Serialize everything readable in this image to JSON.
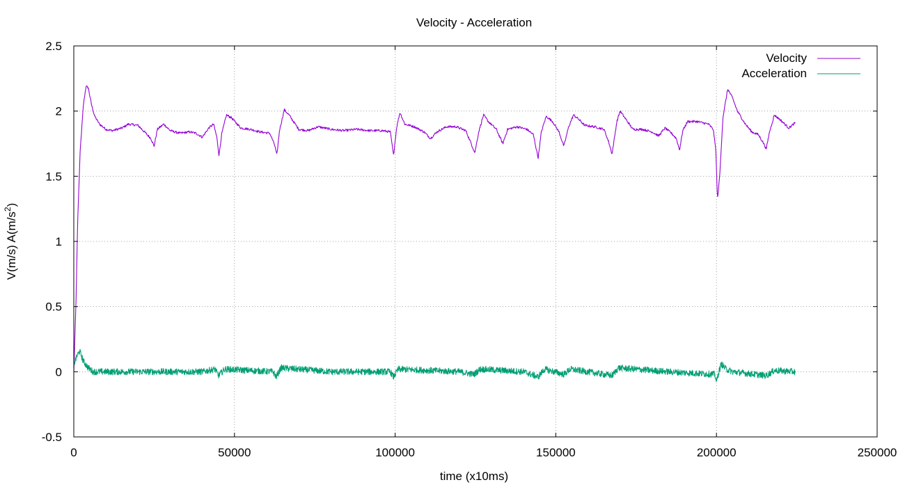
{
  "chart_data": {
    "type": "line",
    "title": "Velocity - Acceleration",
    "xlabel": "time (x10ms)",
    "ylabel": "V(m/s) A(m/s",
    "ylabel_sup": "2",
    "ylabel_close": ")",
    "xlim": [
      0,
      250000
    ],
    "ylim": [
      -0.5,
      2.5
    ],
    "x_ticks": [
      0,
      50000,
      100000,
      150000,
      200000,
      250000
    ],
    "y_ticks": [
      -0.5,
      0,
      0.5,
      1,
      1.5,
      2,
      2.5
    ],
    "grid": true,
    "legend_position": "top-right",
    "series": [
      {
        "name": "Velocity",
        "color": "#9400d3",
        "points": [
          [
            0,
            0.0
          ],
          [
            700,
            0.55
          ],
          [
            1200,
            1.15
          ],
          [
            2000,
            1.7
          ],
          [
            3000,
            2.05
          ],
          [
            3800,
            2.19
          ],
          [
            4500,
            2.18
          ],
          [
            5500,
            2.05
          ],
          [
            6500,
            1.96
          ],
          [
            8000,
            1.9
          ],
          [
            10000,
            1.86
          ],
          [
            12000,
            1.85
          ],
          [
            15000,
            1.87
          ],
          [
            17000,
            1.9
          ],
          [
            20000,
            1.89
          ],
          [
            22000,
            1.84
          ],
          [
            24000,
            1.79
          ],
          [
            25000,
            1.73
          ],
          [
            26000,
            1.86
          ],
          [
            28000,
            1.9
          ],
          [
            30000,
            1.85
          ],
          [
            33000,
            1.83
          ],
          [
            36000,
            1.84
          ],
          [
            38000,
            1.83
          ],
          [
            40000,
            1.8
          ],
          [
            42000,
            1.87
          ],
          [
            43500,
            1.9
          ],
          [
            44500,
            1.8
          ],
          [
            45200,
            1.66
          ],
          [
            46000,
            1.82
          ],
          [
            47500,
            1.97
          ],
          [
            49000,
            1.95
          ],
          [
            52000,
            1.87
          ],
          [
            55000,
            1.86
          ],
          [
            58000,
            1.84
          ],
          [
            61000,
            1.83
          ],
          [
            62500,
            1.74
          ],
          [
            63200,
            1.66
          ],
          [
            64000,
            1.85
          ],
          [
            65500,
            2.01
          ],
          [
            67000,
            1.97
          ],
          [
            70000,
            1.86
          ],
          [
            73000,
            1.85
          ],
          [
            76000,
            1.88
          ],
          [
            80000,
            1.86
          ],
          [
            84000,
            1.85
          ],
          [
            88000,
            1.86
          ],
          [
            92000,
            1.85
          ],
          [
            96000,
            1.85
          ],
          [
            98500,
            1.84
          ],
          [
            99500,
            1.66
          ],
          [
            100500,
            1.88
          ],
          [
            101500,
            1.99
          ],
          [
            103000,
            1.9
          ],
          [
            106000,
            1.88
          ],
          [
            109000,
            1.84
          ],
          [
            111000,
            1.79
          ],
          [
            113000,
            1.84
          ],
          [
            116000,
            1.88
          ],
          [
            119000,
            1.88
          ],
          [
            122000,
            1.85
          ],
          [
            124000,
            1.73
          ],
          [
            124800,
            1.68
          ],
          [
            126000,
            1.84
          ],
          [
            127500,
            1.97
          ],
          [
            129000,
            1.92
          ],
          [
            131500,
            1.86
          ],
          [
            133500,
            1.75
          ],
          [
            135000,
            1.86
          ],
          [
            138000,
            1.88
          ],
          [
            141000,
            1.86
          ],
          [
            143000,
            1.82
          ],
          [
            144500,
            1.64
          ],
          [
            145500,
            1.84
          ],
          [
            147000,
            1.96
          ],
          [
            149000,
            1.92
          ],
          [
            151000,
            1.84
          ],
          [
            152500,
            1.73
          ],
          [
            154000,
            1.88
          ],
          [
            155500,
            1.97
          ],
          [
            157000,
            1.94
          ],
          [
            159000,
            1.89
          ],
          [
            162000,
            1.88
          ],
          [
            165000,
            1.86
          ],
          [
            166500,
            1.76
          ],
          [
            167500,
            1.67
          ],
          [
            169000,
            1.92
          ],
          [
            170000,
            2.0
          ],
          [
            172000,
            1.93
          ],
          [
            174000,
            1.86
          ],
          [
            177000,
            1.86
          ],
          [
            180000,
            1.84
          ],
          [
            182000,
            1.81
          ],
          [
            184000,
            1.87
          ],
          [
            186000,
            1.83
          ],
          [
            187500,
            1.79
          ],
          [
            188500,
            1.7
          ],
          [
            189500,
            1.85
          ],
          [
            191000,
            1.92
          ],
          [
            194000,
            1.92
          ],
          [
            197500,
            1.9
          ],
          [
            199000,
            1.86
          ],
          [
            199800,
            1.7
          ],
          [
            200300,
            1.32
          ],
          [
            201000,
            1.5
          ],
          [
            202000,
            1.95
          ],
          [
            203500,
            2.17
          ],
          [
            205000,
            2.1
          ],
          [
            206500,
            2.0
          ],
          [
            209000,
            1.9
          ],
          [
            211000,
            1.84
          ],
          [
            213000,
            1.82
          ],
          [
            214500,
            1.76
          ],
          [
            215500,
            1.71
          ],
          [
            216500,
            1.84
          ],
          [
            218000,
            1.97
          ],
          [
            220000,
            1.93
          ],
          [
            222500,
            1.87
          ],
          [
            224500,
            1.91
          ]
        ]
      },
      {
        "name": "Acceleration",
        "color": "#009e73",
        "points": [
          [
            0,
            0.06
          ],
          [
            1000,
            0.12
          ],
          [
            1800,
            0.16
          ],
          [
            3000,
            0.08
          ],
          [
            4500,
            0.03
          ],
          [
            6000,
            0.0
          ],
          [
            10000,
            0.0
          ],
          [
            20000,
            0.0
          ],
          [
            40000,
            0.0
          ],
          [
            44000,
            0.02
          ],
          [
            45000,
            -0.03
          ],
          [
            47000,
            0.02
          ],
          [
            62000,
            0.0
          ],
          [
            63000,
            -0.04
          ],
          [
            64500,
            0.03
          ],
          [
            80000,
            0.0
          ],
          [
            98500,
            0.0
          ],
          [
            99500,
            -0.04
          ],
          [
            101000,
            0.02
          ],
          [
            120000,
            0.0
          ],
          [
            124500,
            -0.02
          ],
          [
            126500,
            0.02
          ],
          [
            140000,
            0.0
          ],
          [
            144500,
            -0.04
          ],
          [
            146500,
            0.02
          ],
          [
            152500,
            -0.02
          ],
          [
            154500,
            0.02
          ],
          [
            167500,
            -0.03
          ],
          [
            169500,
            0.03
          ],
          [
            185000,
            0.0
          ],
          [
            199500,
            -0.02
          ],
          [
            200000,
            -0.08
          ],
          [
            200500,
            -0.02
          ],
          [
            201500,
            0.06
          ],
          [
            203000,
            0.02
          ],
          [
            205000,
            0.0
          ],
          [
            215500,
            -0.03
          ],
          [
            218000,
            0.01
          ],
          [
            224500,
            0.0
          ]
        ],
        "noise_amplitude": 0.025
      }
    ]
  }
}
